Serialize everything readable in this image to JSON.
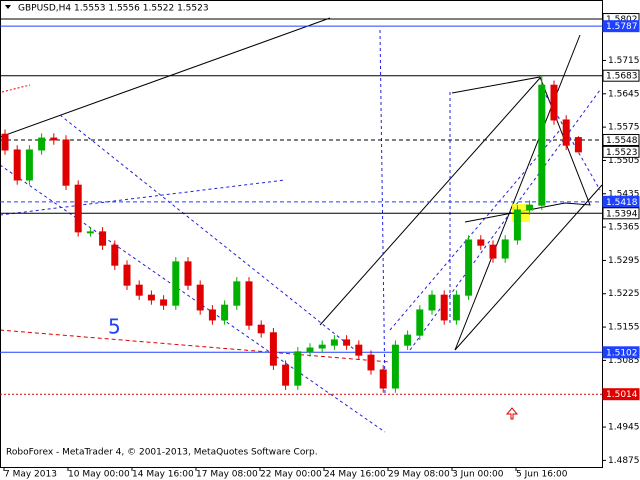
{
  "chart_data": {
    "type": "candlestick",
    "title": "GBPUSD,H4  1.5553 1.5556 1.5522 1.5523",
    "footer": "RoboForex - MetaTrader 4, © 2001-2013, MetaQuotes Software Corp.",
    "annotation": "5",
    "x_labels": [
      "7 May 2013",
      "10 May 00:00",
      "14 May 16:00",
      "17 May 08:00",
      "22 May 00:00",
      "24 May 16:00",
      "29 May 08:00",
      "3 Jun 00:00",
      "5 Jun 16:00"
    ],
    "up_color": "#00b000",
    "down_color": "#e00000",
    "open": [
      1.556,
      1.5527,
      1.5464,
      1.5527,
      1.5552,
      1.5548,
      1.5453,
      1.5355,
      1.5355,
      1.5327,
      1.5285,
      1.5243,
      1.5222,
      1.5212,
      1.5201,
      1.5292,
      1.5243,
      1.5191,
      1.517,
      1.5201,
      1.525,
      1.5159,
      1.5143,
      1.5075,
      1.5033,
      1.5103,
      1.5111,
      1.5117,
      1.5128,
      1.5117,
      1.5096,
      1.5065,
      1.5027,
      1.5117,
      1.5138,
      1.5191,
      1.5222,
      1.517,
      1.5222,
      1.5338,
      1.5327,
      1.53,
      1.5338,
      1.5401,
      1.5411,
      1.5663,
      1.559,
      1.5553
    ],
    "high": [
      1.557,
      1.5537,
      1.5537,
      1.5562,
      1.5562,
      1.5558,
      1.5463,
      1.5365,
      1.5365,
      1.5337,
      1.5295,
      1.5253,
      1.5232,
      1.5222,
      1.5302,
      1.5302,
      1.5253,
      1.5201,
      1.5211,
      1.526,
      1.526,
      1.5169,
      1.5153,
      1.5085,
      1.5113,
      1.5121,
      1.5127,
      1.5138,
      1.5138,
      1.5127,
      1.5106,
      1.5075,
      1.5127,
      1.5148,
      1.5201,
      1.5232,
      1.5232,
      1.5232,
      1.5348,
      1.5348,
      1.5337,
      1.5348,
      1.5411,
      1.5421,
      1.5683,
      1.5673,
      1.56,
      1.5556
    ],
    "low": [
      1.5517,
      1.5454,
      1.5454,
      1.5517,
      1.5538,
      1.5443,
      1.5345,
      1.5345,
      1.5317,
      1.5275,
      1.5233,
      1.5212,
      1.5202,
      1.5191,
      1.5191,
      1.5233,
      1.5181,
      1.516,
      1.516,
      1.5191,
      1.5149,
      1.5133,
      1.5065,
      1.5023,
      1.5023,
      1.5093,
      1.5101,
      1.5107,
      1.5107,
      1.5086,
      1.5055,
      1.5017,
      1.5017,
      1.5107,
      1.5128,
      1.5181,
      1.516,
      1.516,
      1.5212,
      1.5317,
      1.529,
      1.529,
      1.5328,
      1.5391,
      1.5401,
      1.558,
      1.5527,
      1.5522
    ],
    "close": [
      1.5527,
      1.5464,
      1.5527,
      1.5552,
      1.5548,
      1.5453,
      1.5355,
      1.5355,
      1.5327,
      1.5285,
      1.5243,
      1.5222,
      1.5212,
      1.5201,
      1.5292,
      1.5243,
      1.5191,
      1.517,
      1.5201,
      1.525,
      1.5159,
      1.5143,
      1.5075,
      1.5033,
      1.5103,
      1.5111,
      1.5117,
      1.5128,
      1.5117,
      1.5096,
      1.5065,
      1.5027,
      1.5117,
      1.5138,
      1.5191,
      1.5222,
      1.517,
      1.5222,
      1.5338,
      1.5327,
      1.53,
      1.5338,
      1.5401,
      1.5411,
      1.5663,
      1.559,
      1.5537,
      1.5523
    ],
    "ylim": [
      1.4859,
      1.5842
    ],
    "yticks": [
      1.5715,
      1.5645,
      1.5575,
      1.5505,
      1.5435,
      1.5365,
      1.5295,
      1.5225,
      1.5155,
      1.5085,
      1.4945,
      1.4875
    ],
    "levels": [
      {
        "value": 1.5802,
        "color": "#ffffff",
        "text_color": "#000000",
        "line": "solid"
      },
      {
        "value": 1.5787,
        "color": "#1e40ff",
        "text_color": "#ffffff",
        "line": "solid"
      },
      {
        "value": 1.5683,
        "color": "#ffffff",
        "text_color": "#000000",
        "line": "solid"
      },
      {
        "value": 1.5548,
        "color": "#ffffff",
        "text_color": "#000000",
        "line": "dashed"
      },
      {
        "value": 1.5523,
        "color": "#ffffff",
        "text_color": "#000000",
        "line": "none"
      },
      {
        "value": 1.5418,
        "color": "#1e40ff",
        "text_color": "#ffffff",
        "line": "dashed"
      },
      {
        "value": 1.5394,
        "color": "#ffffff",
        "text_color": "#000000",
        "line": "solid"
      },
      {
        "value": 1.5102,
        "color": "#1e40ff",
        "text_color": "#ffffff",
        "line": "solid"
      },
      {
        "value": 1.5014,
        "color": "#e00000",
        "text_color": "#ffffff",
        "line": "dotted"
      }
    ]
  }
}
